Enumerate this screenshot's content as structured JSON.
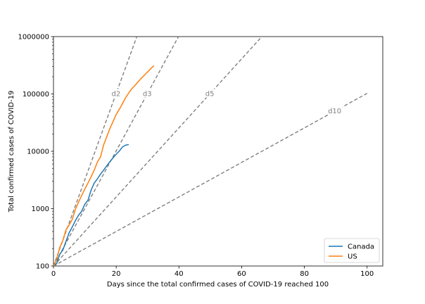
{
  "chart_data": {
    "type": "line",
    "title": "",
    "xlabel": "Days since the total confirmed cases of COVID-19 reached 100",
    "ylabel": "Total confirmed cases of COVID-19",
    "xlim": [
      0,
      105
    ],
    "ylim": [
      100,
      1000000
    ],
    "yscale": "log",
    "xticks": [
      0,
      20,
      40,
      60,
      80,
      100
    ],
    "xtick_labels": [
      "0",
      "20",
      "40",
      "60",
      "80",
      "100"
    ],
    "yticks": [
      100,
      1000,
      10000,
      100000,
      1000000
    ],
    "ytick_labels": [
      "100",
      "1000",
      "10000",
      "100000",
      "1000000"
    ],
    "grid": false,
    "legend": {
      "position": "lower-right",
      "entries": [
        "Canada",
        "US"
      ]
    },
    "series": [
      {
        "name": "Canada",
        "color": "#1f77b4",
        "x": [
          0,
          1,
          2,
          3,
          4,
          5,
          6,
          7,
          8,
          9,
          10,
          11,
          12,
          13,
          14,
          15,
          16,
          17,
          18,
          19,
          20,
          21,
          22,
          23,
          24
        ],
        "y": [
          103,
          110,
          160,
          190,
          270,
          380,
          480,
          620,
          770,
          900,
          1200,
          1400,
          2100,
          2800,
          3300,
          4000,
          4700,
          5600,
          6600,
          7700,
          8900,
          10100,
          11900,
          12800,
          13100
        ]
      },
      {
        "name": "US",
        "color": "#ff7f0e",
        "x": [
          0,
          1,
          2,
          3,
          4,
          5,
          6,
          7,
          8,
          9,
          10,
          11,
          12,
          13,
          14,
          15,
          16,
          17,
          18,
          19,
          20,
          21,
          22,
          23,
          24,
          25,
          26,
          27,
          28,
          29,
          30,
          31,
          32
        ],
        "y": [
          100,
          130,
          210,
          280,
          430,
          520,
          650,
          980,
          1300,
          1700,
          2200,
          2800,
          3600,
          4700,
          6500,
          8000,
          13000,
          18000,
          25000,
          33000,
          44000,
          54000,
          68000,
          86000,
          104000,
          124000,
          141000,
          163000,
          188000,
          213000,
          242000,
          275000,
          311000
        ]
      }
    ],
    "reference_lines": [
      {
        "label": "d2",
        "doubling_days": 2,
        "color": "#808080",
        "style": "dashed"
      },
      {
        "label": "d3",
        "doubling_days": 3,
        "color": "#808080",
        "style": "dashed"
      },
      {
        "label": "d5",
        "doubling_days": 5,
        "color": "#808080",
        "style": "dashed"
      },
      {
        "label": "d10",
        "doubling_days": 10,
        "color": "#808080",
        "style": "dashed"
      }
    ]
  }
}
